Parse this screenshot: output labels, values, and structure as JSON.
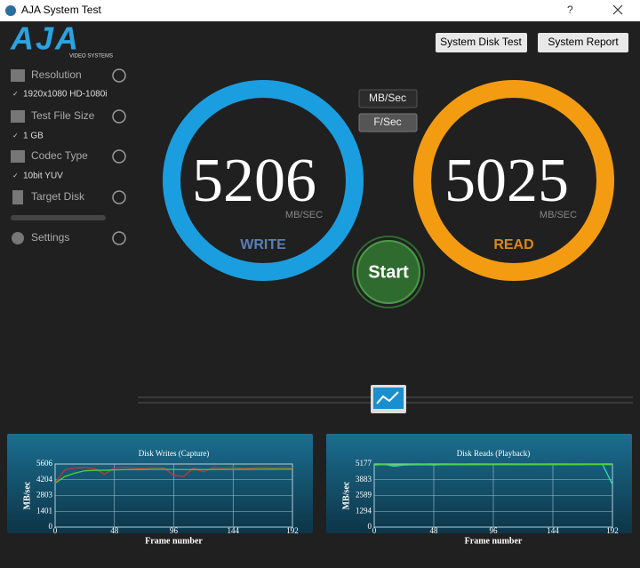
{
  "window": {
    "title": "AJA System Test",
    "help": "?"
  },
  "logo": {
    "name": "AJA",
    "tagline": "VIDEO SYSTEMS"
  },
  "buttons": [
    "System Disk Test",
    "System Report"
  ],
  "sidebar": [
    {
      "label": "Resolution",
      "value": "1920x1080 HD-1080i"
    },
    {
      "label": "Test File Size",
      "value": "1 GB"
    },
    {
      "label": "Codec Type",
      "value": "10bit YUV"
    },
    {
      "label": "Target Disk"
    },
    {
      "label": "Settings"
    }
  ],
  "units": [
    "MB/Sec",
    "F/Sec"
  ],
  "write": {
    "value": "5206",
    "unit": "MB/SEC",
    "label": "WRITE"
  },
  "read": {
    "value": "5025",
    "unit": "MB/SEC",
    "label": "READ"
  },
  "start": "Start",
  "chart_data": [
    {
      "type": "line",
      "title": "Disk Writes (Capture)",
      "xlabel": "Frame number",
      "ylabel": "MB/sec",
      "x": [
        0,
        8,
        16,
        24,
        32,
        40,
        48,
        56,
        64,
        72,
        80,
        88,
        96,
        104,
        112,
        120,
        128,
        136,
        144,
        152,
        160,
        168,
        176,
        184,
        192
      ],
      "xlim": [
        0,
        192
      ],
      "ylim": [
        0,
        5606
      ],
      "xticks": [
        0,
        48,
        96,
        144,
        192
      ],
      "yticks": [
        0,
        1401,
        2803,
        4204,
        5606
      ],
      "grid": true,
      "series": [
        {
          "color": "#d0312d",
          "values": [
            3900,
            5100,
            5250,
            5300,
            5200,
            4700,
            5250,
            5300,
            5250,
            5200,
            5300,
            5250,
            4600,
            4500,
            5250,
            4900,
            5300,
            5250,
            5300,
            5200,
            5250,
            5300,
            5250,
            5300,
            5250
          ]
        },
        {
          "color": "#4cd03c",
          "values": [
            3900,
            4500,
            4800,
            5000,
            5050,
            5050,
            5080,
            5100,
            5110,
            5120,
            5130,
            5130,
            5120,
            5110,
            5110,
            5110,
            5120,
            5120,
            5130,
            5130,
            5140,
            5140,
            5140,
            5150,
            5150
          ]
        }
      ]
    },
    {
      "type": "line",
      "title": "Disk Reads (Playback)",
      "xlabel": "Frame number",
      "ylabel": "MB/sec",
      "x": [
        0,
        8,
        16,
        24,
        32,
        40,
        48,
        56,
        64,
        72,
        80,
        88,
        96,
        104,
        112,
        120,
        128,
        136,
        144,
        152,
        160,
        168,
        176,
        184,
        192
      ],
      "xlim": [
        0,
        192
      ],
      "ylim": [
        0,
        5177
      ],
      "xticks": [
        0,
        48,
        96,
        144,
        192
      ],
      "yticks": [
        0,
        1294,
        2589,
        3883,
        5177
      ],
      "grid": true,
      "series": [
        {
          "color": "#2ee0b0",
          "values": [
            5100,
            5150,
            5000,
            5100,
            5120,
            5150,
            5100,
            5130,
            5140,
            5150,
            5120,
            5140,
            5150,
            5130,
            5140,
            5150,
            5140,
            5150,
            5130,
            5140,
            5150,
            5140,
            5150,
            5140,
            3500
          ]
        },
        {
          "color": "#4cd03c",
          "values": [
            5100,
            5120,
            5100,
            5100,
            5105,
            5110,
            5110,
            5112,
            5115,
            5118,
            5118,
            5120,
            5122,
            5122,
            5123,
            5125,
            5125,
            5126,
            5126,
            5127,
            5128,
            5128,
            5129,
            5129,
            5120
          ]
        }
      ]
    }
  ]
}
